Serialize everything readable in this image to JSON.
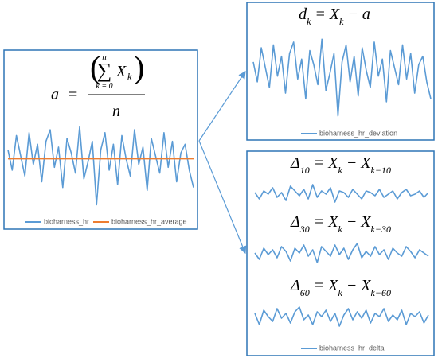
{
  "left_panel": {
    "formula": {
      "lhs": "a",
      "eq": "=",
      "open": "(",
      "sum": "∑",
      "sum_upper": "n",
      "sum_lower": "k = 0",
      "var": "X",
      "var_sub": "k",
      "close": ")",
      "denominator": "n"
    },
    "ylim": [
      -2,
      1.5
    ],
    "series": [
      {
        "name": "bioharness_hr",
        "color": "#5b9bd5",
        "values": [
          0.3,
          -0.4,
          0.8,
          0.1,
          -0.6,
          0.9,
          -0.2,
          0.5,
          -0.8,
          0.6,
          1.0,
          -0.3,
          0.4,
          -1.0,
          0.7,
          0.2,
          -0.5,
          1.1,
          -0.7,
          -0.1,
          0.6,
          -1.6,
          0.3,
          0.9,
          -0.4,
          0.5,
          -0.9,
          0.8,
          0.0,
          -0.6,
          1.0,
          -0.2,
          0.4,
          -1.1,
          0.7,
          0.1,
          -0.5,
          0.9,
          -0.3,
          0.6,
          -0.8,
          0.2,
          0.5,
          -0.4,
          -1.0
        ]
      },
      {
        "name": "bioharness_hr_average",
        "color": "#ed7d31",
        "value": 0
      }
    ]
  },
  "deviation_panel": {
    "formula": [
      {
        "text": "d"
      },
      {
        "sub": "k"
      },
      {
        "text": " = X"
      },
      {
        "sub": "k"
      },
      {
        "text": " − a"
      }
    ],
    "ylim": [
      -2,
      1.5
    ],
    "series": [
      {
        "name": "bioharness_hr_deviation",
        "color": "#5b9bd5",
        "values": [
          0.3,
          -0.4,
          0.8,
          0.1,
          -0.6,
          0.9,
          -0.2,
          0.5,
          -0.8,
          0.6,
          1.0,
          -0.3,
          0.4,
          -1.0,
          0.7,
          0.2,
          -0.5,
          1.1,
          -0.7,
          -0.1,
          0.6,
          -1.6,
          0.3,
          0.9,
          -0.4,
          0.5,
          -0.9,
          0.8,
          0.0,
          -0.6,
          1.0,
          -0.2,
          0.4,
          -1.1,
          0.7,
          0.1,
          -0.5,
          0.9,
          -0.3,
          0.6,
          -0.8,
          0.2,
          0.5,
          -0.4,
          -1.0
        ]
      }
    ]
  },
  "delta_panel": {
    "ylim": [
      -1,
      1
    ],
    "plots": [
      {
        "formula": [
          {
            "text": "Δ"
          },
          {
            "sub": "10"
          },
          {
            "text": " = X"
          },
          {
            "sub": "k"
          },
          {
            "text": " − X"
          },
          {
            "sub": "k−10"
          }
        ],
        "values": [
          0.1,
          -0.3,
          0.2,
          0.0,
          0.4,
          -0.2,
          0.1,
          -0.4,
          0.5,
          0.2,
          -0.1,
          0.3,
          -0.3,
          0.6,
          -0.2,
          0.2,
          0.0,
          0.4,
          -0.5,
          0.2,
          0.1,
          -0.2,
          0.3,
          0.0,
          -0.3,
          0.2,
          0.1,
          -0.1,
          0.3,
          -0.2,
          0.0,
          0.2,
          -0.3,
          0.1,
          0.3,
          -0.1,
          0.0,
          0.2,
          -0.2,
          0.1
        ]
      },
      {
        "formula": [
          {
            "text": "Δ"
          },
          {
            "sub": "30"
          },
          {
            "text": " = X"
          },
          {
            "sub": "k"
          },
          {
            "text": " − X"
          },
          {
            "sub": "k−30"
          }
        ],
        "values": [
          0.0,
          -0.4,
          0.3,
          -0.1,
          0.2,
          -0.3,
          0.4,
          0.1,
          -0.5,
          0.3,
          0.0,
          0.5,
          -0.2,
          0.2,
          -0.6,
          0.4,
          0.1,
          -0.2,
          0.5,
          -0.1,
          0.3,
          -0.4,
          0.2,
          0.6,
          -0.3,
          0.1,
          -0.2,
          0.4,
          -0.1,
          0.2,
          -0.4,
          0.3,
          0.0,
          -0.2,
          0.4,
          0.1,
          -0.3,
          0.2,
          0.0,
          -0.2
        ]
      },
      {
        "formula": [
          {
            "text": "Δ"
          },
          {
            "sub": "60"
          },
          {
            "text": " = X"
          },
          {
            "sub": "k"
          },
          {
            "text": " − X"
          },
          {
            "sub": "k−60"
          }
        ],
        "values": [
          0.2,
          -0.5,
          0.4,
          0.0,
          -0.3,
          0.5,
          -0.1,
          0.2,
          -0.4,
          0.3,
          0.6,
          -0.2,
          0.1,
          -0.5,
          0.3,
          0.0,
          0.4,
          -0.3,
          0.2,
          -0.6,
          0.1,
          0.5,
          -0.2,
          0.3,
          -0.1,
          0.4,
          -0.4,
          0.2,
          0.0,
          0.5,
          -0.3,
          0.1,
          -0.2,
          0.4,
          -0.5,
          0.2,
          0.0,
          0.3,
          -0.4,
          0.1
        ]
      }
    ],
    "series_name": "bioharness_hr_delta",
    "color": "#5b9bd5"
  }
}
